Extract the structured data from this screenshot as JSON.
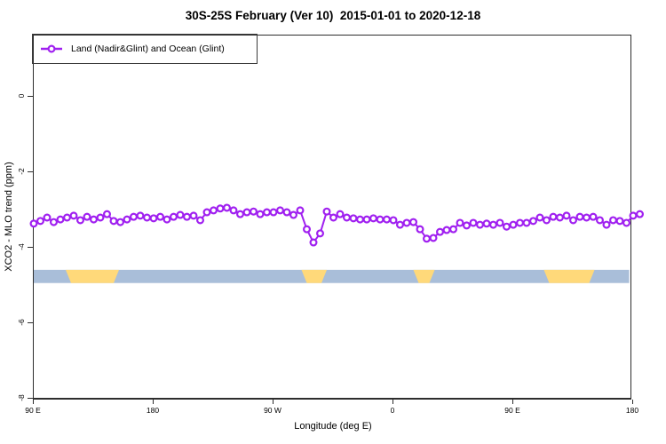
{
  "title": "30S-25S February (Ver 10)  2015-01-01 to 2020-12-18",
  "legend": {
    "label": "Land (Nadir&Glint) and Ocean (Glint)"
  },
  "colors": {
    "series": "#A020F0",
    "marker_fill": "#FFFFFF",
    "ocean_band": "#A9BED9",
    "land_band": "#FFD97A",
    "axis": "#2D2D2D",
    "text": "#000000"
  },
  "chart_data": {
    "type": "line",
    "title": "30S-25S February (Ver 10)  2015-01-01 to 2020-12-18",
    "xlabel": "Longitude (deg E)",
    "ylabel": "XCO2 - MLO trend (ppm)",
    "legend_position": "topleft",
    "grid": false,
    "xlim": [
      90,
      540
    ],
    "ylim": [
      -8.05,
      1.6
    ],
    "yticks": [
      0,
      -2,
      -4,
      -6,
      -8
    ],
    "xticks": [
      {
        "pos": 90,
        "label": "90 E"
      },
      {
        "pos": 180,
        "label": "180"
      },
      {
        "pos": 270,
        "label": "90 W"
      },
      {
        "pos": 360,
        "label": "0"
      },
      {
        "pos": 450,
        "label": "90 E"
      },
      {
        "pos": 540,
        "label": "180"
      }
    ],
    "x_start": 90,
    "x_step": 5,
    "x_units": "degrees longitude (wrapping eastward from 90 E through 180, 90 W, 0, 90 E to 180)",
    "series": [
      {
        "name": "Land (Nadir&Glint) and Ocean (Glint)",
        "marker": "open-circle",
        "color": "#A020F0",
        "values": [
          -3.36,
          -3.29,
          -3.2,
          -3.32,
          -3.25,
          -3.2,
          -3.15,
          -3.27,
          -3.18,
          -3.25,
          -3.2,
          -3.11,
          -3.29,
          -3.32,
          -3.25,
          -3.18,
          -3.15,
          -3.2,
          -3.22,
          -3.18,
          -3.25,
          -3.18,
          -3.13,
          -3.18,
          -3.15,
          -3.27,
          -3.06,
          -3.01,
          -2.96,
          -2.94,
          -3.01,
          -3.11,
          -3.06,
          -3.04,
          -3.11,
          -3.06,
          -3.06,
          -3.01,
          -3.06,
          -3.13,
          -3.01,
          -3.51,
          -3.86,
          -3.62,
          -3.04,
          -3.2,
          -3.11,
          -3.2,
          -3.22,
          -3.25,
          -3.25,
          -3.22,
          -3.25,
          -3.25,
          -3.27,
          -3.39,
          -3.34,
          -3.32,
          -3.51,
          -3.76,
          -3.74,
          -3.58,
          -3.53,
          -3.51,
          -3.34,
          -3.41,
          -3.34,
          -3.39,
          -3.36,
          -3.39,
          -3.34,
          -3.44,
          -3.39,
          -3.34,
          -3.34,
          -3.29,
          -3.2,
          -3.27,
          -3.18,
          -3.2,
          -3.15,
          -3.27,
          -3.18,
          -3.2,
          -3.18,
          -3.27,
          -3.39,
          -3.27,
          -3.29,
          -3.34,
          -3.15,
          -3.11
        ]
      }
    ],
    "surface_band": {
      "description": "land/ocean strip along longitude",
      "y_center": -4.76,
      "height": 0.35,
      "segments": [
        {
          "type": "ocean",
          "from": 90,
          "to": 114
        },
        {
          "type": "land",
          "from": 114,
          "to": 154
        },
        {
          "type": "ocean",
          "from": 154,
          "to": 291
        },
        {
          "type": "land",
          "from": 291,
          "to": 310
        },
        {
          "type": "ocean",
          "from": 310,
          "to": 375
        },
        {
          "type": "land",
          "from": 375,
          "to": 391
        },
        {
          "type": "ocean",
          "from": 391,
          "to": 473
        },
        {
          "type": "land",
          "from": 473,
          "to": 511
        },
        {
          "type": "ocean",
          "from": 511,
          "to": 537
        }
      ]
    }
  }
}
